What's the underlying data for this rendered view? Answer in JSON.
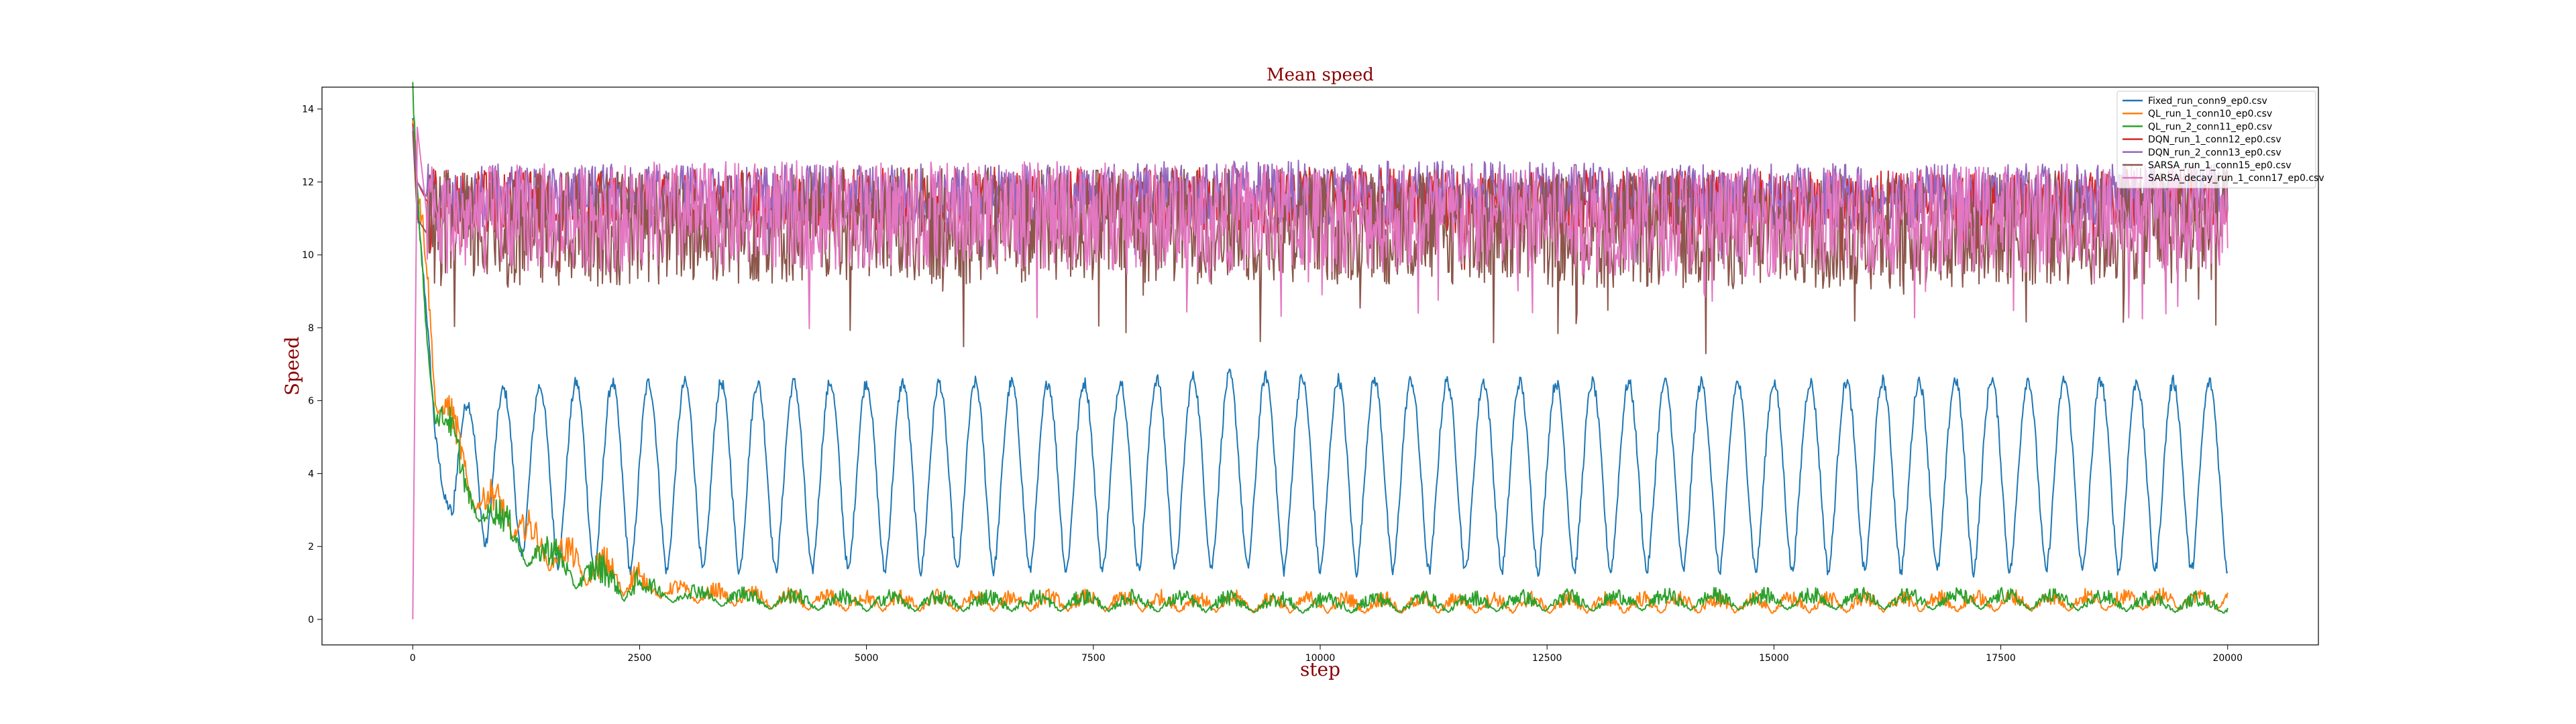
{
  "chart_data": {
    "type": "line",
    "title": "Mean speed",
    "xlabel": "step",
    "ylabel": "Speed",
    "xlim": [
      -1000,
      21000
    ],
    "ylim": [
      -0.7,
      14.6
    ],
    "xticks": [
      0,
      2500,
      5000,
      7500,
      10000,
      12500,
      15000,
      17500,
      20000
    ],
    "yticks": [
      0,
      2,
      4,
      6,
      8,
      10,
      12,
      14
    ],
    "grid": false,
    "legend_position": "top-right",
    "series": [
      {
        "name": "Fixed_run_conn9_ep0.csv",
        "color": "#1f77b4",
        "x": [
          0,
          60,
          150,
          250,
          350,
          500,
          650,
          800,
          1000,
          1200,
          1400,
          1600,
          1800,
          2000,
          3000,
          5000,
          7500,
          9000,
          10000,
          12500,
          15000,
          17500,
          20000
        ],
        "y": [
          13.7,
          11.0,
          8.5,
          5.0,
          3.3,
          2.6,
          2.2,
          2.0,
          1.8,
          1.7,
          1.6,
          1.5,
          1.4,
          1.3,
          1.3,
          1.3,
          1.3,
          1.4,
          1.3,
          1.3,
          1.3,
          1.3,
          1.3
        ],
        "upper": [
          13.7,
          11.0,
          8.5,
          5.0,
          3.6,
          5.8,
          6.0,
          6.3,
          6.3,
          6.4,
          6.4,
          6.4,
          6.5,
          6.5,
          6.5,
          6.5,
          6.5,
          6.7,
          6.6,
          6.5,
          6.5,
          6.6,
          6.5
        ],
        "oscillation_period": 400
      },
      {
        "name": "QL_run_1_conn10_ep0.csv",
        "color": "#ff7f0e",
        "x": [
          0,
          50,
          150,
          250,
          400,
          600,
          800,
          1000,
          1200,
          1500,
          2000,
          2500,
          3000,
          4000,
          5000,
          7500,
          10000,
          12500,
          15000,
          17500,
          20000
        ],
        "y": [
          13.5,
          11.5,
          9.5,
          6.0,
          5.5,
          3.5,
          3.0,
          2.8,
          2.2,
          1.6,
          1.1,
          0.8,
          0.6,
          0.4,
          0.35,
          0.35,
          0.3,
          0.3,
          0.3,
          0.35,
          0.4
        ]
      },
      {
        "name": "QL_run_2_conn11_ep0.csv",
        "color": "#2ca02c",
        "x": [
          0,
          50,
          150,
          250,
          400,
          600,
          800,
          1000,
          1200,
          1500,
          2000,
          2500,
          3000,
          4000,
          5000,
          7500,
          10000,
          12500,
          15000,
          17500,
          20000
        ],
        "y": [
          13.9,
          11.5,
          8.0,
          5.5,
          5.0,
          3.2,
          2.8,
          2.3,
          1.8,
          1.4,
          0.9,
          0.7,
          0.55,
          0.4,
          0.35,
          0.35,
          0.3,
          0.35,
          0.4,
          0.4,
          0.3
        ]
      },
      {
        "name": "DQN_run_1_conn12_ep0.csv",
        "color": "#d62728",
        "x": [
          0,
          50,
          150,
          300,
          1000,
          5000,
          10000,
          15000,
          20000
        ],
        "y": [
          13.6,
          12.0,
          11.5,
          11.5,
          11.4,
          11.5,
          11.5,
          11.4,
          11.5
        ]
      },
      {
        "name": "DQN_run_2_conn13_ep0.csv",
        "color": "#9467bd",
        "x": [
          0,
          50,
          150,
          300,
          1000,
          5000,
          10000,
          15000,
          20000
        ],
        "y": [
          13.5,
          12.0,
          11.6,
          11.6,
          11.6,
          11.6,
          11.7,
          11.6,
          11.6
        ]
      },
      {
        "name": "SARSA_run_1_conn15_ep0.csv",
        "color": "#8c564b",
        "x": [
          0,
          50,
          150,
          300,
          1000,
          5000,
          10000,
          15000,
          20000
        ],
        "y": [
          13.4,
          11.0,
          10.6,
          10.7,
          10.7,
          10.8,
          10.8,
          10.6,
          10.8
        ]
      },
      {
        "name": "SARSA_decay_run_1_conn17_ep0.csv",
        "color": "#e377c2",
        "x": [
          0,
          50,
          150,
          300,
          1000,
          5000,
          10000,
          15000,
          20000
        ],
        "y": [
          0,
          13.5,
          11.2,
          10.9,
          11.0,
          11.1,
          11.0,
          10.9,
          11.1
        ]
      }
    ]
  }
}
